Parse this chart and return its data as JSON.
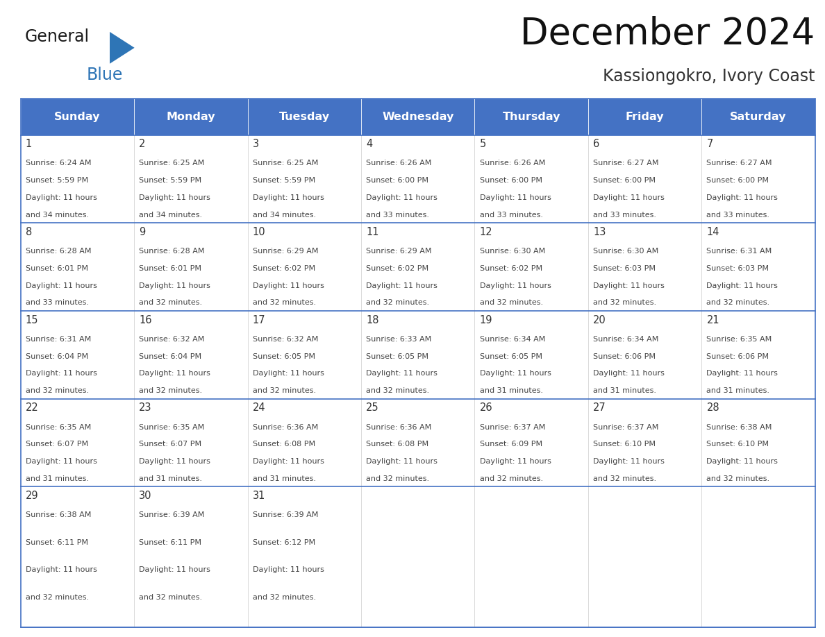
{
  "title": "December 2024",
  "subtitle": "Kassiongokro, Ivory Coast",
  "days_of_week": [
    "Sunday",
    "Monday",
    "Tuesday",
    "Wednesday",
    "Thursday",
    "Friday",
    "Saturday"
  ],
  "header_bg": "#4472C4",
  "header_text": "#FFFFFF",
  "cell_border_color": "#4472C4",
  "row_separator_color": "#4472C4",
  "day_num_color": "#333333",
  "text_color": "#444444",
  "bg_color": "#FFFFFF",
  "logo_general_color": "#1a1a1a",
  "logo_blue_color": "#2E75B6",
  "calendar_data": [
    [
      {
        "day": 1,
        "sunrise": "6:24 AM",
        "sunset": "5:59 PM",
        "hours": "11 hours",
        "mins": "34 minutes."
      },
      {
        "day": 2,
        "sunrise": "6:25 AM",
        "sunset": "5:59 PM",
        "hours": "11 hours",
        "mins": "34 minutes."
      },
      {
        "day": 3,
        "sunrise": "6:25 AM",
        "sunset": "5:59 PM",
        "hours": "11 hours",
        "mins": "34 minutes."
      },
      {
        "day": 4,
        "sunrise": "6:26 AM",
        "sunset": "6:00 PM",
        "hours": "11 hours",
        "mins": "33 minutes."
      },
      {
        "day": 5,
        "sunrise": "6:26 AM",
        "sunset": "6:00 PM",
        "hours": "11 hours",
        "mins": "33 minutes."
      },
      {
        "day": 6,
        "sunrise": "6:27 AM",
        "sunset": "6:00 PM",
        "hours": "11 hours",
        "mins": "33 minutes."
      },
      {
        "day": 7,
        "sunrise": "6:27 AM",
        "sunset": "6:00 PM",
        "hours": "11 hours",
        "mins": "33 minutes."
      }
    ],
    [
      {
        "day": 8,
        "sunrise": "6:28 AM",
        "sunset": "6:01 PM",
        "hours": "11 hours",
        "mins": "33 minutes."
      },
      {
        "day": 9,
        "sunrise": "6:28 AM",
        "sunset": "6:01 PM",
        "hours": "11 hours",
        "mins": "32 minutes."
      },
      {
        "day": 10,
        "sunrise": "6:29 AM",
        "sunset": "6:02 PM",
        "hours": "11 hours",
        "mins": "32 minutes."
      },
      {
        "day": 11,
        "sunrise": "6:29 AM",
        "sunset": "6:02 PM",
        "hours": "11 hours",
        "mins": "32 minutes."
      },
      {
        "day": 12,
        "sunrise": "6:30 AM",
        "sunset": "6:02 PM",
        "hours": "11 hours",
        "mins": "32 minutes."
      },
      {
        "day": 13,
        "sunrise": "6:30 AM",
        "sunset": "6:03 PM",
        "hours": "11 hours",
        "mins": "32 minutes."
      },
      {
        "day": 14,
        "sunrise": "6:31 AM",
        "sunset": "6:03 PM",
        "hours": "11 hours",
        "mins": "32 minutes."
      }
    ],
    [
      {
        "day": 15,
        "sunrise": "6:31 AM",
        "sunset": "6:04 PM",
        "hours": "11 hours",
        "mins": "32 minutes."
      },
      {
        "day": 16,
        "sunrise": "6:32 AM",
        "sunset": "6:04 PM",
        "hours": "11 hours",
        "mins": "32 minutes."
      },
      {
        "day": 17,
        "sunrise": "6:32 AM",
        "sunset": "6:05 PM",
        "hours": "11 hours",
        "mins": "32 minutes."
      },
      {
        "day": 18,
        "sunrise": "6:33 AM",
        "sunset": "6:05 PM",
        "hours": "11 hours",
        "mins": "32 minutes."
      },
      {
        "day": 19,
        "sunrise": "6:34 AM",
        "sunset": "6:05 PM",
        "hours": "11 hours",
        "mins": "31 minutes."
      },
      {
        "day": 20,
        "sunrise": "6:34 AM",
        "sunset": "6:06 PM",
        "hours": "11 hours",
        "mins": "31 minutes."
      },
      {
        "day": 21,
        "sunrise": "6:35 AM",
        "sunset": "6:06 PM",
        "hours": "11 hours",
        "mins": "31 minutes."
      }
    ],
    [
      {
        "day": 22,
        "sunrise": "6:35 AM",
        "sunset": "6:07 PM",
        "hours": "11 hours",
        "mins": "31 minutes."
      },
      {
        "day": 23,
        "sunrise": "6:35 AM",
        "sunset": "6:07 PM",
        "hours": "11 hours",
        "mins": "31 minutes."
      },
      {
        "day": 24,
        "sunrise": "6:36 AM",
        "sunset": "6:08 PM",
        "hours": "11 hours",
        "mins": "31 minutes."
      },
      {
        "day": 25,
        "sunrise": "6:36 AM",
        "sunset": "6:08 PM",
        "hours": "11 hours",
        "mins": "32 minutes."
      },
      {
        "day": 26,
        "sunrise": "6:37 AM",
        "sunset": "6:09 PM",
        "hours": "11 hours",
        "mins": "32 minutes."
      },
      {
        "day": 27,
        "sunrise": "6:37 AM",
        "sunset": "6:10 PM",
        "hours": "11 hours",
        "mins": "32 minutes."
      },
      {
        "day": 28,
        "sunrise": "6:38 AM",
        "sunset": "6:10 PM",
        "hours": "11 hours",
        "mins": "32 minutes."
      }
    ],
    [
      {
        "day": 29,
        "sunrise": "6:38 AM",
        "sunset": "6:11 PM",
        "hours": "11 hours",
        "mins": "32 minutes."
      },
      {
        "day": 30,
        "sunrise": "6:39 AM",
        "sunset": "6:11 PM",
        "hours": "11 hours",
        "mins": "32 minutes."
      },
      {
        "day": 31,
        "sunrise": "6:39 AM",
        "sunset": "6:12 PM",
        "hours": "11 hours",
        "mins": "32 minutes."
      },
      null,
      null,
      null,
      null
    ]
  ]
}
